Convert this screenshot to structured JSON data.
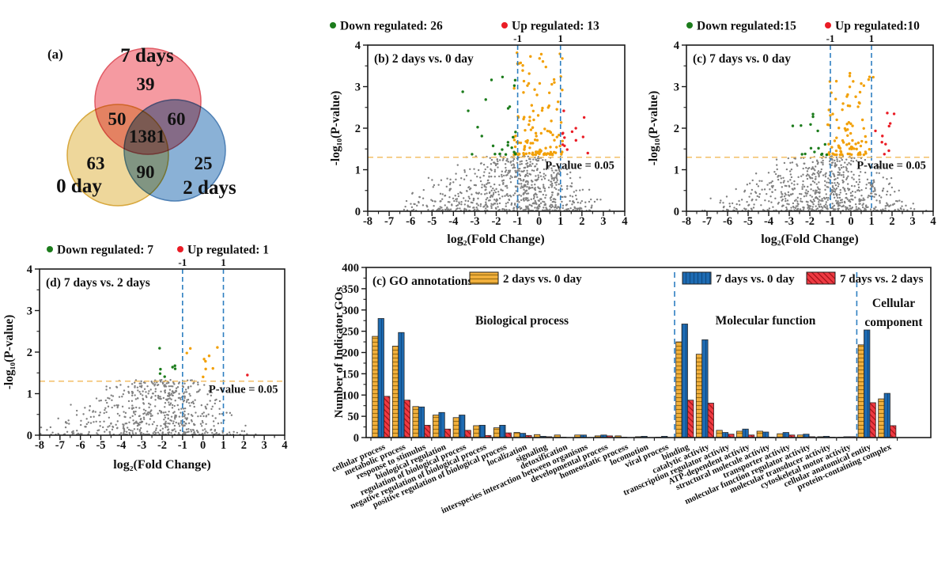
{
  "volcano_style": {
    "background_point": "#808080",
    "mid_point": "#f2a007",
    "fc_line": "#2e7fc1",
    "p_line": "#f3bf67",
    "p_text": "#1464b4",
    "axis": "#1a1a1a"
  },
  "chart_data": [
    {
      "id": "a",
      "type": "venn",
      "panel_tag": "(a)",
      "sets": [
        {
          "label": "7 days",
          "only_count": 39
        },
        {
          "label": "0 day",
          "only_count": 63
        },
        {
          "label": "2 days",
          "only_count": 25
        }
      ],
      "overlap_counts": {
        "7days_0day": 50,
        "7days_2days": 60,
        "0day_2days": 90,
        "all_three": 1381
      },
      "colors": {
        "7days_fill": "#f59aa1",
        "7days_stroke": "#e05a64",
        "0day_fill": "#eed79b",
        "0day_stroke": "#d8a83e",
        "2days_fill": "#8ab1d6",
        "2days_stroke": "#4e80b5"
      }
    },
    {
      "id": "b",
      "type": "scatter",
      "subtype": "volcano",
      "title": "(b) 2 days vs. 0 day",
      "legend": [
        {
          "label": "Down regulated: 26",
          "color": "#1c7c1c"
        },
        {
          "label": "Up regulated: 13",
          "color": "#ea1c25"
        }
      ],
      "down_regulated": 26,
      "up_regulated": 13,
      "xlabel": "log₂(Fold Change)",
      "ylabel": "-log₁₀(P-value)",
      "xlim": [
        -8,
        4
      ],
      "ylim": [
        0,
        4
      ],
      "x_ticks": [
        -8,
        -7,
        -6,
        -5,
        -4,
        -3,
        -2,
        -1,
        0,
        1,
        2,
        3,
        4
      ],
      "y_ticks": [
        0,
        1,
        2,
        3,
        4
      ],
      "fold_change_lines": {
        "values": [
          -1,
          1
        ],
        "labels": [
          "-1",
          "1"
        ]
      },
      "p_value_line": {
        "y": 1.301,
        "label": "P-value = 0.05"
      }
    },
    {
      "id": "c",
      "type": "scatter",
      "subtype": "volcano",
      "title": "(c) 7 days vs. 0 day",
      "legend": [
        {
          "label": "Down regulated:15",
          "color": "#1c7c1c"
        },
        {
          "label": "Up regulated:10",
          "color": "#ea1c25"
        }
      ],
      "down_regulated": 15,
      "up_regulated": 10,
      "xlabel": "log₂(Fold Change)",
      "ylabel": "-log₁₀(P-value)",
      "xlim": [
        -8,
        4
      ],
      "ylim": [
        0,
        4
      ],
      "x_ticks": [
        -8,
        -7,
        -6,
        -5,
        -4,
        -3,
        -2,
        -1,
        0,
        1,
        2,
        3,
        4
      ],
      "y_ticks": [
        0,
        1,
        2,
        3,
        4
      ],
      "fold_change_lines": {
        "values": [
          -1,
          1
        ],
        "labels": [
          "-1",
          "1"
        ]
      },
      "p_value_line": {
        "y": 1.301,
        "label": "P-value = 0.05"
      }
    },
    {
      "id": "d",
      "type": "scatter",
      "subtype": "volcano",
      "title": "(d) 7 days vs. 2 days",
      "legend": [
        {
          "label": "Down regulated: 7",
          "color": "#1c7c1c"
        },
        {
          "label": "Up regulated: 1",
          "color": "#ea1c25"
        }
      ],
      "down_regulated": 7,
      "up_regulated": 1,
      "xlabel": "log₂(Fold Change)",
      "ylabel": "-log₁₀(P-value)",
      "xlim": [
        -8,
        4
      ],
      "ylim": [
        0,
        4
      ],
      "x_ticks": [
        -8,
        -7,
        -6,
        -5,
        -4,
        -3,
        -2,
        -1,
        0,
        1,
        2,
        3,
        4
      ],
      "y_ticks": [
        0,
        1,
        2,
        3,
        4
      ],
      "fold_change_lines": {
        "values": [
          -1,
          1
        ],
        "labels": [
          "-1",
          "1"
        ]
      },
      "p_value_line": {
        "y": 1.301,
        "label": "P-value = 0.05"
      }
    },
    {
      "id": "e",
      "type": "bar",
      "panel_tag": "(c) GO annotations",
      "ylabel": "Number of Indicator GOs",
      "ylim": [
        0,
        400
      ],
      "y_ticks": [
        0,
        50,
        100,
        150,
        200,
        250,
        300,
        350,
        400
      ],
      "categories": [
        "cellular process",
        "metabolic process",
        "response to stimulus",
        "biological regulation",
        "regulation of biological process",
        "negative regulation of biological process",
        "positive regulation of biological process",
        "localization",
        "signaling",
        "detoxification",
        "interspecies interaction between organisms",
        "developmental process",
        "homeostatic process",
        "locomotion",
        "viral process",
        "binding",
        "catalytic activity",
        "transcription regulator activity",
        "ATP-dependent activity",
        "structural molecule activity",
        "transporter activity",
        "molecular function regulator activity",
        "molecular transducer activity",
        "cytoskeletal motor activity",
        "cellular anatomical entity",
        "protein-containing complex"
      ],
      "sections": [
        {
          "label_lines": [
            "Biological process"
          ],
          "from": 0,
          "to": 14
        },
        {
          "label_lines": [
            "Molecular function"
          ],
          "from": 15,
          "to": 23
        },
        {
          "label_lines": [
            "Cellular",
            "component"
          ],
          "from": 24,
          "to": 25
        }
      ],
      "separator_color": "#2e7fc1",
      "series": [
        {
          "name": "2 days vs. 0 day",
          "fill": "#f3b13d",
          "hatch": "#9c6e12",
          "hatch_dir": "horizontal",
          "values": [
            238,
            215,
            73,
            53,
            47,
            28,
            23,
            12,
            7,
            6,
            6,
            4,
            4,
            2,
            1,
            225,
            196,
            17,
            15,
            15,
            9,
            6,
            2,
            1,
            218,
            91
          ]
        },
        {
          "name": "7 days vs. 0 day",
          "fill": "#1e6bb3",
          "hatch": "#0f4a82",
          "hatch_dir": "vertical",
          "values": [
            280,
            247,
            72,
            59,
            53,
            29,
            29,
            10,
            3,
            1,
            6,
            6,
            1,
            3,
            3,
            267,
            230,
            12,
            20,
            13,
            12,
            8,
            3,
            2,
            253,
            104
          ]
        },
        {
          "name": "7 days vs. 2 days",
          "fill": "#ee3a42",
          "hatch": "#9e1016",
          "hatch_dir": "diagonal",
          "values": [
            97,
            88,
            29,
            20,
            17,
            5,
            11,
            5,
            2,
            0,
            0,
            4,
            0,
            0,
            0,
            88,
            81,
            8,
            6,
            1,
            6,
            2,
            1,
            2,
            82,
            28
          ]
        }
      ]
    }
  ]
}
